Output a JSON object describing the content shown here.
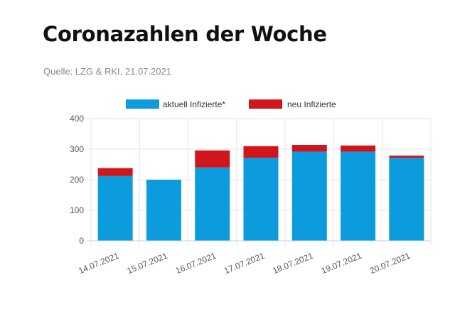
{
  "header": {
    "title": "Coronazahlen der Woche",
    "source": "Quelle: LZG & RKI, 21.07.2021"
  },
  "chart_data": {
    "type": "bar",
    "stacked": true,
    "categories": [
      "14.07.2021",
      "15.07.2021",
      "16.07.2021",
      "17.07.2021",
      "18.07.2021",
      "19.07.2021",
      "20.07.2021"
    ],
    "series": [
      {
        "name": "aktuell Infizierte*",
        "color": "#0c9bdc",
        "values": [
          212,
          200,
          240,
          272,
          292,
          292,
          272
        ]
      },
      {
        "name": "neu Infizierte",
        "color": "#d0161c",
        "values": [
          26,
          0,
          56,
          38,
          22,
          20,
          7
        ]
      }
    ],
    "ylim": [
      0,
      400
    ],
    "yticks": [
      "0",
      "100",
      "200",
      "300",
      "400"
    ],
    "grid": true,
    "legend": "top"
  }
}
